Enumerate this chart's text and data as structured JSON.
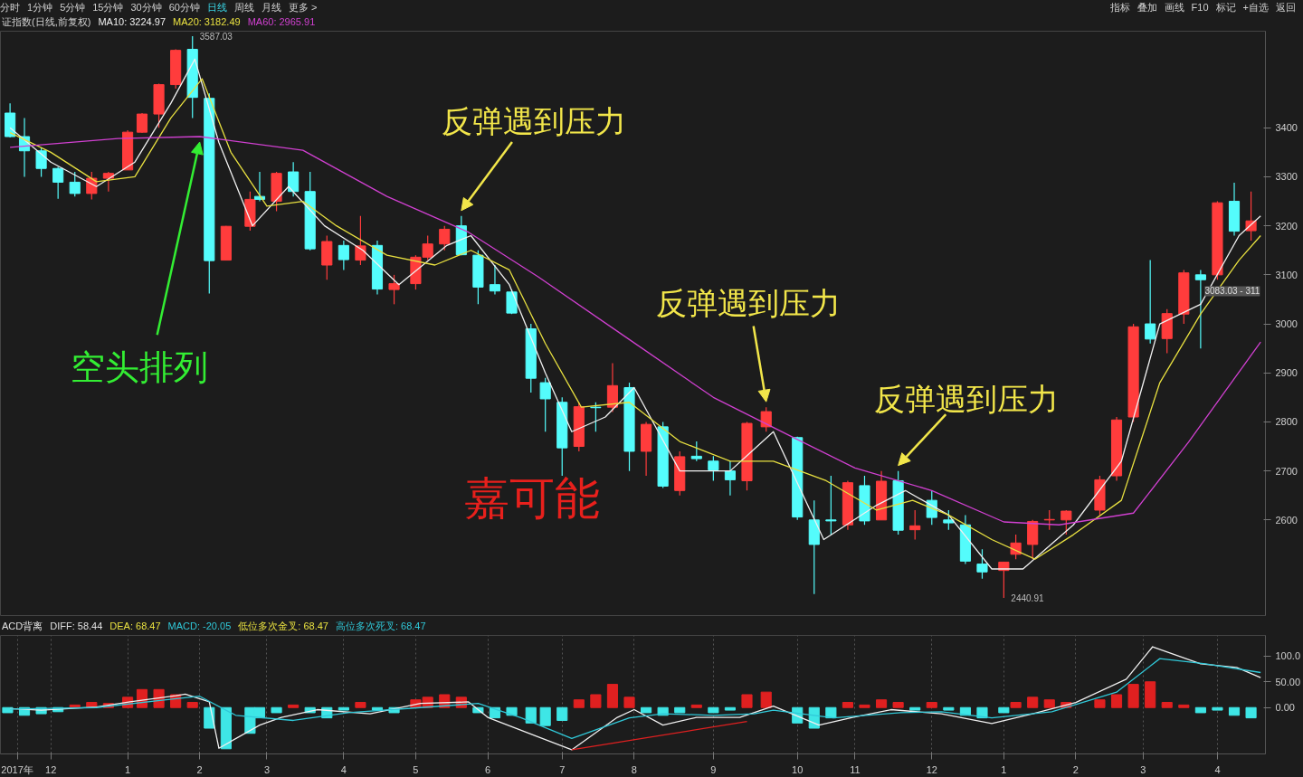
{
  "chart_data": [
    {
      "type": "candlestick",
      "x": [
        "2017-11-14",
        "2017-11-20",
        "2017-11-27",
        "2017-12-04",
        "2017-12-11",
        "2017-12-18",
        "2017-12-25",
        "2018-01-02",
        "2018-01-08",
        "2018-01-15",
        "2018-01-22",
        "2018-01-29",
        "2018-02-05",
        "2018-02-12",
        "2018-02-22",
        "2018-02-26",
        "2018-03-05",
        "2018-03-12",
        "2018-03-19",
        "2018-03-26",
        "2018-04-02",
        "2018-04-09",
        "2018-04-16",
        "2018-04-23",
        "2018-05-02",
        "2018-05-07",
        "2018-05-14",
        "2018-05-21",
        "2018-05-28",
        "2018-06-04",
        "2018-06-11",
        "2018-06-19",
        "2018-06-25",
        "2018-07-02",
        "2018-07-09",
        "2018-07-16",
        "2018-07-23",
        "2018-07-30",
        "2018-08-06",
        "2018-08-13",
        "2018-08-20",
        "2018-08-27",
        "2018-09-03",
        "2018-09-10",
        "2018-09-17",
        "2018-09-25",
        "2018-10-08",
        "2018-10-15",
        "2018-10-22",
        "2018-10-29",
        "2018-11-05",
        "2018-11-12",
        "2018-11-19",
        "2018-11-26",
        "2018-12-03",
        "2018-12-10",
        "2018-12-17",
        "2018-12-24",
        "2019-01-02",
        "2019-01-07",
        "2019-01-14",
        "2019-01-21",
        "2019-01-28",
        "2019-02-11",
        "2019-02-18",
        "2019-02-25",
        "2019-03-04",
        "2019-03-11",
        "2019-03-18",
        "2019-03-25",
        "2019-04-01",
        "2019-04-08",
        "2019-04-15"
      ],
      "ohlc": [
        [
          3430,
          3450,
          3380,
          3382
        ],
        [
          3382,
          3420,
          3300,
          3353
        ],
        [
          3353,
          3360,
          3300,
          3317
        ],
        [
          3317,
          3320,
          3255,
          3289
        ],
        [
          3289,
          3310,
          3260,
          3266
        ],
        [
          3266,
          3310,
          3254,
          3297
        ],
        [
          3297,
          3310,
          3270,
          3307
        ],
        [
          3314,
          3395,
          3314,
          3391
        ],
        [
          3391,
          3430,
          3390,
          3428
        ],
        [
          3428,
          3490,
          3400,
          3488
        ],
        [
          3488,
          3560,
          3480,
          3558
        ],
        [
          3560,
          3587.03,
          3420,
          3462
        ],
        [
          3460,
          3470,
          3062,
          3129
        ],
        [
          3130,
          3200,
          3130,
          3199
        ],
        [
          3199,
          3270,
          3190,
          3254
        ],
        [
          3260,
          3310,
          3250,
          3254
        ],
        [
          3250,
          3310,
          3230,
          3307
        ],
        [
          3310,
          3330,
          3260,
          3270
        ],
        [
          3270,
          3310,
          3150,
          3153
        ],
        [
          3120,
          3180,
          3090,
          3168
        ],
        [
          3160,
          3170,
          3110,
          3131
        ],
        [
          3130,
          3220,
          3120,
          3159
        ],
        [
          3160,
          3170,
          3060,
          3071
        ],
        [
          3070,
          3100,
          3040,
          3082
        ],
        [
          3082,
          3140,
          3070,
          3136
        ],
        [
          3136,
          3180,
          3130,
          3163
        ],
        [
          3163,
          3200,
          3150,
          3193
        ],
        [
          3200,
          3220,
          3140,
          3141
        ],
        [
          3140,
          3150,
          3040,
          3075
        ],
        [
          3080,
          3120,
          3060,
          3067
        ],
        [
          3065,
          3070,
          3020,
          3022
        ],
        [
          2990,
          3000,
          2860,
          2889
        ],
        [
          2880,
          2890,
          2780,
          2847
        ],
        [
          2840,
          2850,
          2690,
          2747
        ],
        [
          2750,
          2840,
          2740,
          2831
        ],
        [
          2830,
          2840,
          2780,
          2829
        ],
        [
          2830,
          2920,
          2820,
          2874
        ],
        [
          2870,
          2880,
          2700,
          2740
        ],
        [
          2740,
          2800,
          2690,
          2795
        ],
        [
          2790,
          2800,
          2665,
          2669
        ],
        [
          2660,
          2740,
          2650,
          2729
        ],
        [
          2730,
          2760,
          2720,
          2725
        ],
        [
          2720,
          2730,
          2680,
          2702
        ],
        [
          2700,
          2720,
          2650,
          2682
        ],
        [
          2680,
          2800,
          2660,
          2797
        ],
        [
          2790,
          2830,
          2780,
          2821
        ],
        [
          2768,
          2770,
          2600,
          2606
        ],
        [
          2600,
          2640,
          2449,
          2550
        ],
        [
          2600,
          2690,
          2570,
          2598
        ],
        [
          2590,
          2680,
          2580,
          2676
        ],
        [
          2670,
          2690,
          2590,
          2598
        ],
        [
          2600,
          2700,
          2600,
          2679
        ],
        [
          2680,
          2700,
          2570,
          2579
        ],
        [
          2580,
          2620,
          2560,
          2588
        ],
        [
          2640,
          2660,
          2590,
          2605
        ],
        [
          2600,
          2620,
          2580,
          2594
        ],
        [
          2590,
          2610,
          2510,
          2516
        ],
        [
          2510,
          2540,
          2480,
          2494
        ],
        [
          2497,
          2515,
          2440.91,
          2514
        ],
        [
          2530,
          2570,
          2520,
          2553
        ],
        [
          2550,
          2600,
          2520,
          2597
        ],
        [
          2600,
          2620,
          2580,
          2601
        ],
        [
          2600,
          2620,
          2570,
          2618
        ],
        [
          2620,
          2690,
          2610,
          2682
        ],
        [
          2690,
          2810,
          2680,
          2804
        ],
        [
          2810,
          3000,
          2800,
          2994
        ],
        [
          3000,
          3130,
          2960,
          2969
        ],
        [
          2970,
          3030,
          2940,
          3021
        ],
        [
          3020,
          3110,
          3000,
          3104
        ],
        [
          3100,
          3110,
          2950,
          3090
        ],
        [
          3100,
          3250,
          3090,
          3247
        ],
        [
          3250,
          3288,
          3180,
          3189
        ],
        [
          3190,
          3270,
          3170,
          3210
        ]
      ],
      "colors": [
        "#54fcfc",
        "#54fcfc",
        "#54fcfc",
        "#54fcfc",
        "#54fcfc",
        "#ff3c3c",
        "#ff3c3c",
        "#ff3c3c",
        "#ff3c3c",
        "#ff3c3c",
        "#ff3c3c",
        "#54fcfc",
        "#54fcfc",
        "#ff3c3c",
        "#ff3c3c",
        "#54fcfc",
        "#ff3c3c",
        "#54fcfc",
        "#54fcfc",
        "#ff3c3c",
        "#54fcfc",
        "#ff3c3c",
        "#54fcfc",
        "#ff3c3c",
        "#ff3c3c",
        "#ff3c3c",
        "#ff3c3c",
        "#54fcfc",
        "#54fcfc",
        "#54fcfc",
        "#54fcfc",
        "#54fcfc",
        "#54fcfc",
        "#54fcfc",
        "#ff3c3c",
        "#54fcfc",
        "#ff3c3c",
        "#54fcfc",
        "#ff3c3c",
        "#54fcfc",
        "#ff3c3c",
        "#54fcfc",
        "#54fcfc",
        "#54fcfc",
        "#ff3c3c",
        "#ff3c3c",
        "#54fcfc",
        "#54fcfc",
        "#54fcfc",
        "#ff3c3c",
        "#54fcfc",
        "#ff3c3c",
        "#54fcfc",
        "#ff3c3c",
        "#54fcfc",
        "#54fcfc",
        "#54fcfc",
        "#54fcfc",
        "#ff3c3c",
        "#ff3c3c",
        "#ff3c3c",
        "#ff3c3c",
        "#ff3c3c",
        "#ff3c3c",
        "#ff3c3c",
        "#ff3c3c",
        "#54fcfc",
        "#ff3c3c",
        "#ff3c3c",
        "#54fcfc",
        "#ff3c3c",
        "#54fcfc",
        "#ff3c3c"
      ],
      "series": [
        {
          "type": "line",
          "name": "MA10: 3224.97",
          "color": "#f0f0f0",
          "x": [
            "2017-11-14",
            "2017-12-01",
            "2017-12-20",
            "2018-01-05",
            "2018-01-20",
            "2018-01-30",
            "2018-02-09",
            "2018-02-23",
            "2018-03-10",
            "2018-03-25",
            "2018-04-10",
            "2018-04-25",
            "2018-05-15",
            "2018-05-25",
            "2018-06-10",
            "2018-06-25",
            "2018-07-06",
            "2018-07-20",
            "2018-08-01",
            "2018-08-20",
            "2018-09-10",
            "2018-09-28",
            "2018-10-19",
            "2018-11-10",
            "2018-11-22",
            "2018-12-10",
            "2018-12-28",
            "2019-01-10",
            "2019-01-31",
            "2019-02-20",
            "2019-03-08",
            "2019-03-25",
            "2019-04-10",
            "2019-04-19"
          ],
          "values": [
            3400,
            3330,
            3280,
            3330,
            3450,
            3540,
            3370,
            3200,
            3280,
            3200,
            3150,
            3080,
            3160,
            3180,
            3080,
            2900,
            2780,
            2810,
            2870,
            2700,
            2700,
            2780,
            2560,
            2630,
            2660,
            2610,
            2500,
            2500,
            2590,
            2720,
            3000,
            3040,
            3180,
            3220
          ]
        },
        {
          "type": "line",
          "name": "MA20: 3182.49",
          "color": "#e8e040",
          "x": [
            "2017-11-14",
            "2017-12-01",
            "2017-12-20",
            "2018-01-05",
            "2018-01-20",
            "2018-02-02",
            "2018-02-14",
            "2018-03-01",
            "2018-03-16",
            "2018-03-30",
            "2018-04-20",
            "2018-05-10",
            "2018-05-25",
            "2018-06-10",
            "2018-06-25",
            "2018-07-10",
            "2018-07-30",
            "2018-08-20",
            "2018-09-10",
            "2018-09-28",
            "2018-10-20",
            "2018-11-10",
            "2018-11-25",
            "2018-12-10",
            "2018-12-28",
            "2019-01-15",
            "2019-01-31",
            "2019-02-20",
            "2019-03-08",
            "2019-03-25",
            "2019-04-10",
            "2019-04-19"
          ],
          "values": [
            3390,
            3350,
            3290,
            3300,
            3420,
            3500,
            3350,
            3240,
            3250,
            3200,
            3140,
            3120,
            3150,
            3110,
            2960,
            2830,
            2840,
            2760,
            2720,
            2720,
            2680,
            2620,
            2640,
            2610,
            2560,
            2520,
            2570,
            2640,
            2880,
            3020,
            3130,
            3180
          ]
        },
        {
          "type": "line",
          "name": "MA60: 2965.91",
          "color": "#d040d0",
          "x": [
            "2017-11-14",
            "2017-12-29",
            "2018-02-01",
            "2018-03-16",
            "2018-04-20",
            "2018-05-24",
            "2018-06-22",
            "2018-07-30",
            "2018-09-03",
            "2018-10-08",
            "2018-11-01",
            "2018-12-03",
            "2019-01-02",
            "2019-01-25",
            "2019-02-25",
            "2019-03-20",
            "2019-04-19"
          ],
          "values": [
            3360,
            3378,
            3382,
            3354,
            3260,
            3187,
            3096,
            2968,
            2850,
            2764,
            2706,
            2660,
            2596,
            2590,
            2614,
            2759,
            2963
          ]
        }
      ],
      "xlim": [
        "2017-11-10",
        "2019-04-21"
      ],
      "ylim": [
        2405,
        3597
      ],
      "yticks": [
        2600,
        2700,
        2800,
        2900,
        3000,
        3100,
        3200,
        3300,
        3400
      ],
      "tick_labels": "y",
      "grid": false,
      "annotations": [
        {
          "text": "反弹遇到压力",
          "x": "2018-05-21",
          "y": 3220
        },
        {
          "text": "反弹遇到压力",
          "x": "2018-09-25",
          "y": 2830
        },
        {
          "text": "反弹遇到压力",
          "x": "2018-11-19",
          "y": 2700
        },
        {
          "text": "空头排列",
          "x": "2018-02-01",
          "y": 3382
        },
        {
          "text": "3587.03",
          "x": "2018-01-29",
          "y": 3587.03
        },
        {
          "text": "2440.91",
          "x": "2019-01-02",
          "y": 2440.91
        },
        "嘉可能",
        "3083.03 - 311",
        "证指数(日线,前复权)",
        "分时",
        "1分钟",
        "5分钟",
        "15分钟",
        "30分钟",
        "60分钟",
        "日线",
        "周线",
        "月线",
        "更多 >",
        "指标",
        "叠加",
        "画线",
        "F10",
        "标记",
        "+自选",
        "返回"
      ]
    },
    {
      "type": "bar",
      "x": [
        "2017-11-13",
        "2017-11-20",
        "2017-11-27",
        "2017-12-04",
        "2017-12-11",
        "2017-12-18",
        "2017-12-25",
        "2018-01-02",
        "2018-01-08",
        "2018-01-15",
        "2018-01-22",
        "2018-01-29",
        "2018-02-05",
        "2018-02-12",
        "2018-02-22",
        "2018-02-26",
        "2018-03-05",
        "2018-03-12",
        "2018-03-19",
        "2018-03-26",
        "2018-04-02",
        "2018-04-09",
        "2018-04-16",
        "2018-04-23",
        "2018-05-02",
        "2018-05-07",
        "2018-05-14",
        "2018-05-21",
        "2018-05-28",
        "2018-06-04",
        "2018-06-11",
        "2018-06-19",
        "2018-06-25",
        "2018-07-02",
        "2018-07-09",
        "2018-07-16",
        "2018-07-23",
        "2018-07-30",
        "2018-08-06",
        "2018-08-13",
        "2018-08-20",
        "2018-08-27",
        "2018-09-03",
        "2018-09-10",
        "2018-09-17",
        "2018-09-25",
        "2018-10-08",
        "2018-10-15",
        "2018-10-22",
        "2018-10-29",
        "2018-11-05",
        "2018-11-12",
        "2018-11-19",
        "2018-11-26",
        "2018-12-03",
        "2018-12-10",
        "2018-12-17",
        "2018-12-24",
        "2019-01-02",
        "2019-01-07",
        "2019-01-14",
        "2019-01-21",
        "2019-01-28",
        "2019-02-11",
        "2019-02-18",
        "2019-02-25",
        "2019-03-04",
        "2019-03-11",
        "2019-03-18",
        "2019-03-25",
        "2019-04-01",
        "2019-04-08",
        "2019-04-15"
      ],
      "series": [
        {
          "type": "bar",
          "values": [
            -10,
            -15,
            -12,
            -8,
            5,
            10,
            8,
            20,
            35,
            35,
            25,
            10,
            -40,
            -80,
            -50,
            -20,
            -10,
            5,
            -10,
            -20,
            -5,
            10,
            -5,
            -10,
            15,
            20,
            25,
            20,
            -10,
            -20,
            -15,
            -30,
            -35,
            -25,
            15,
            25,
            45,
            20,
            -10,
            -15,
            -10,
            5,
            -10,
            -5,
            25,
            30,
            -30,
            -40,
            -20,
            10,
            5,
            15,
            10,
            -5,
            10,
            -5,
            -15,
            -20,
            -10,
            10,
            20,
            15,
            10,
            15,
            25,
            45,
            50,
            10,
            5,
            -10,
            -5,
            -15,
            -20
          ],
          "colors": [
            "#3ee6e6",
            "#3ee6e6",
            "#3ee6e6",
            "#3ee6e6",
            "#e02020",
            "#e02020",
            "#e02020",
            "#e02020",
            "#e02020",
            "#e02020",
            "#e02020",
            "#e02020",
            "#3ee6e6",
            "#3ee6e6",
            "#3ee6e6",
            "#3ee6e6",
            "#3ee6e6",
            "#e02020",
            "#3ee6e6",
            "#3ee6e6",
            "#3ee6e6",
            "#e02020",
            "#3ee6e6",
            "#3ee6e6",
            "#e02020",
            "#e02020",
            "#e02020",
            "#e02020",
            "#3ee6e6",
            "#3ee6e6",
            "#3ee6e6",
            "#3ee6e6",
            "#3ee6e6",
            "#3ee6e6",
            "#e02020",
            "#e02020",
            "#e02020",
            "#e02020",
            "#3ee6e6",
            "#3ee6e6",
            "#3ee6e6",
            "#e02020",
            "#3ee6e6",
            "#3ee6e6",
            "#e02020",
            "#e02020",
            "#3ee6e6",
            "#3ee6e6",
            "#3ee6e6",
            "#e02020",
            "#e02020",
            "#e02020",
            "#e02020",
            "#3ee6e6",
            "#e02020",
            "#3ee6e6",
            "#3ee6e6",
            "#3ee6e6",
            "#3ee6e6",
            "#e02020",
            "#e02020",
            "#e02020",
            "#e02020",
            "#e02020",
            "#e02020",
            "#e02020",
            "#e02020",
            "#e02020",
            "#e02020",
            "#3ee6e6",
            "#3ee6e6",
            "#3ee6e6",
            "#3ee6e6"
          ]
        },
        {
          "type": "line",
          "color": "#f0f0f0",
          "x": [
            "2017-11-14",
            "2017-11-27",
            "2017-12-20",
            "2018-01-03",
            "2018-01-22",
            "2018-01-26",
            "2018-02-05",
            "2018-02-09",
            "2018-02-26",
            "2018-03-07",
            "2018-03-22",
            "2018-04-13",
            "2018-05-04",
            "2018-05-24",
            "2018-06-01",
            "2018-06-22",
            "2018-07-06",
            "2018-07-25",
            "2018-08-01",
            "2018-08-13",
            "2018-08-27",
            "2018-09-14",
            "2018-09-28",
            "2018-10-17",
            "2018-10-31",
            "2018-11-16",
            "2018-12-07",
            "2018-12-28",
            "2019-01-14",
            "2019-02-01",
            "2019-02-22",
            "2019-03-05",
            "2019-03-25",
            "2019-04-09",
            "2019-04-19"
          ],
          "values": [
            -2,
            -5,
            1,
            11,
            23,
            26,
            11,
            -79,
            -34,
            -19,
            -4,
            -12,
            8,
            11,
            -19,
            -57,
            -82,
            -19,
            -4,
            -34,
            -19,
            -19,
            3,
            -34,
            -19,
            -4,
            -12,
            -31,
            -12,
            10,
            55,
            118,
            85,
            78,
            58
          ]
        },
        {
          "type": "line",
          "color": "#30c8d8",
          "x": [
            "2017-11-14",
            "2017-12-20",
            "2018-01-18",
            "2018-02-01",
            "2018-02-16",
            "2018-03-12",
            "2018-04-04",
            "2018-05-04",
            "2018-05-28",
            "2018-06-15",
            "2018-07-06",
            "2018-07-30",
            "2018-08-13",
            "2018-09-03",
            "2018-09-20",
            "2018-09-28",
            "2018-10-23",
            "2018-11-20",
            "2018-12-07",
            "2018-12-28",
            "2019-01-22",
            "2019-02-18",
            "2019-03-08",
            "2019-03-27",
            "2019-04-19"
          ],
          "values": [
            -3,
            0,
            15,
            22,
            -15,
            -25,
            -10,
            0,
            8,
            -20,
            -60,
            -20,
            -12,
            -15,
            -12,
            -5,
            -20,
            -10,
            -8,
            -20,
            -8,
            30,
            95,
            85,
            68
          ]
        },
        {
          "type": "line",
          "color": "#e02020",
          "x": [
            "2018-07-06",
            "2018-09-17"
          ],
          "values": [
            -82,
            -27
          ]
        }
      ],
      "xlim": [
        "2017-11-10",
        "2019-04-21"
      ],
      "ylim": [
        -90,
        140
      ],
      "yticks": [
        {
          "value": 0,
          "label": "0.00"
        },
        {
          "value": 50,
          "label": "50.00"
        },
        {
          "value": 100,
          "label": "100.0"
        }
      ],
      "xticks": [
        {
          "value": "2017-11-17",
          "label": "2017年"
        },
        {
          "value": "2017-12-01",
          "label": "12"
        },
        {
          "value": "2018-01-02",
          "label": "1"
        },
        {
          "value": "2018-02-01",
          "label": "2"
        },
        {
          "value": "2018-03-01",
          "label": "3"
        },
        {
          "value": "2018-04-02",
          "label": "4"
        },
        {
          "value": "2018-05-02",
          "label": "5"
        },
        {
          "value": "2018-06-01",
          "label": "6"
        },
        {
          "value": "2018-07-02",
          "label": "7"
        },
        {
          "value": "2018-08-01",
          "label": "8"
        },
        {
          "value": "2018-09-03",
          "label": "9"
        },
        {
          "value": "2018-10-08",
          "label": "10"
        },
        {
          "value": "2018-11-01",
          "label": "11"
        },
        {
          "value": "2018-12-03",
          "label": "12"
        },
        {
          "value": "2019-01-02",
          "label": "1"
        },
        {
          "value": "2019-02-01",
          "label": "2"
        },
        {
          "value": "2019-03-01",
          "label": "3"
        },
        {
          "value": "2019-04-01",
          "label": "4"
        }
      ],
      "grid": "x",
      "annotations": [
        "ACD背离",
        "DIFF: 58.44",
        "DEA: 68.47",
        "MACD: -20.05",
        "低位多次金叉: 68.47",
        "高位多次死叉: 68.47"
      ]
    }
  ]
}
